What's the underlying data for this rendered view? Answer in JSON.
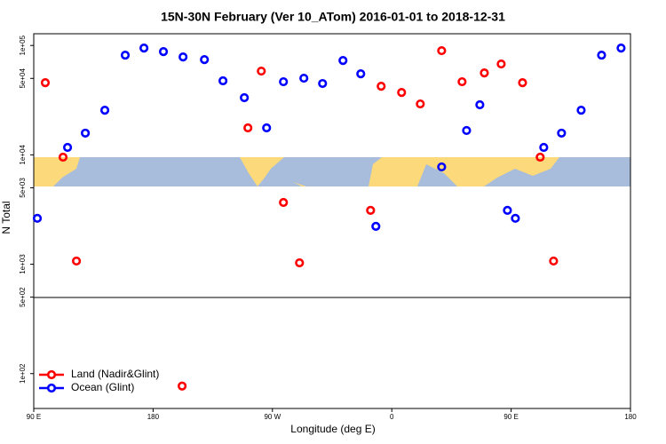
{
  "chart_data": {
    "type": "scatter",
    "title": "15N-30N February (Ver 10_ATom)   2016-01-01 to 2018-12-31",
    "x_label": "Longitude (deg E)",
    "y_label": "N Total",
    "log_y": true,
    "legend": "lower left",
    "xlim": [
      90,
      540
    ],
    "xticks": [
      {
        "value": 90,
        "label": "90 E"
      },
      {
        "value": 180,
        "label": "180"
      },
      {
        "value": 270,
        "label": "90 W"
      },
      {
        "value": 360,
        "label": "0"
      },
      {
        "value": 450,
        "label": "90 E"
      },
      {
        "value": 540,
        "label": "180"
      }
    ],
    "ylim": [
      48,
      128000
    ],
    "yticks": [
      {
        "value": 100,
        "label": "1e+02"
      },
      {
        "value": 500,
        "label": "5e+02"
      },
      {
        "value": 1000,
        "label": "1e+03"
      },
      {
        "value": 5000,
        "label": "5e+03"
      },
      {
        "value": 10000,
        "label": "1e+04"
      },
      {
        "value": 50000,
        "label": "5e+04"
      },
      {
        "value": 100000,
        "label": "1e+05"
      }
    ],
    "series": [
      {
        "name": "Land (Nadir&Glint)",
        "color": "#ff0000",
        "x": [
          98.7,
          112.1,
          122.2,
          201.9,
          251.5,
          261.6,
          278.3,
          290.4,
          344.0,
          352.0,
          367.4,
          381.5,
          397.6,
          413.0,
          429.8,
          442.5,
          458.6,
          471.9,
          482.0
        ],
        "values": [
          45700,
          9530,
          1070,
          77,
          17650,
          58300,
          3670,
          1030,
          3110,
          42400,
          37200,
          29200,
          89600,
          46600,
          56100,
          67700,
          45700,
          9530,
          1070
        ]
      },
      {
        "name": "Ocean (Glint)",
        "color": "#0000ff",
        "x": [
          92.7,
          115.5,
          128.9,
          143.6,
          159.0,
          173.1,
          187.8,
          202.6,
          218.7,
          232.7,
          248.8,
          265.6,
          278.3,
          293.7,
          307.8,
          323.2,
          336.6,
          348.0,
          397.6,
          416.4,
          426.4,
          447.2,
          453.2,
          474.6,
          488.0,
          502.8,
          518.2,
          532.9
        ],
        "values": [
          2630,
          11700,
          15800,
          25600,
          81600,
          94700,
          87900,
          78500,
          74300,
          47500,
          33300,
          17650,
          46600,
          50200,
          44900,
          72900,
          55100,
          2220,
          7760,
          16700,
          28700,
          3110,
          2630,
          11700,
          15800,
          25600,
          81600,
          94700
        ]
      }
    ]
  }
}
